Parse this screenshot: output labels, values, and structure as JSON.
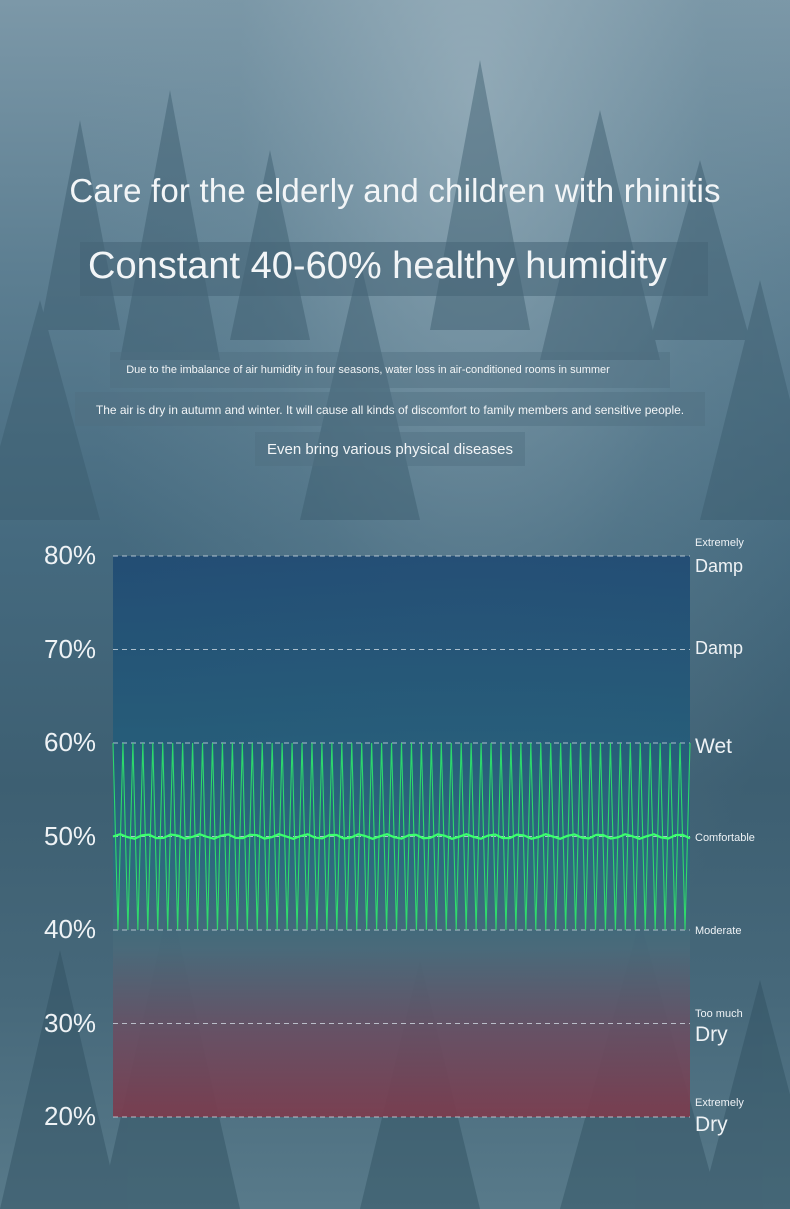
{
  "header": {
    "title": "Care for the elderly and children with rhinitis",
    "subtitle": "Constant 40-60% healthy humidity"
  },
  "description": {
    "line1": "Due to the imbalance of air humidity in four seasons, water loss in air-conditioned rooms in summer",
    "line2": "The air is dry in autumn and winter. It will cause all kinds of discomfort to family members and sensitive people.",
    "line3": "Even bring various physical diseases"
  },
  "zones": [
    {
      "small": "Extremely",
      "big": "Damp"
    },
    {
      "small": "",
      "big": "Damp"
    },
    {
      "small": "",
      "big": "Wet"
    },
    {
      "small": "Comfortable",
      "big": ""
    },
    {
      "small": "Moderate",
      "big": ""
    },
    {
      "small": "Too much",
      "big": "Dry"
    },
    {
      "small": "Extremely",
      "big": "Dry"
    }
  ],
  "chart_data": {
    "type": "line",
    "title": "",
    "xlabel": "",
    "ylabel": "",
    "ylim": [
      20,
      80
    ],
    "y_ticks": [
      "80%",
      "70%",
      "60%",
      "50%",
      "40%",
      "30%",
      "20%"
    ],
    "y_tick_values": [
      80,
      70,
      60,
      50,
      40,
      30,
      20
    ],
    "grid": "dashed horizontal lines at each tick",
    "series": [
      {
        "color": "#2ee66a",
        "pattern": "oscillation between 40 and 60",
        "min": 40,
        "max": 60,
        "cycles": 58
      },
      {
        "color": "#3cff6e",
        "pattern": "steady level",
        "value": 50
      }
    ],
    "band_colors": {
      "top": "#1e4a72",
      "middle": "#2d6680",
      "bottom": "#7a3a4a"
    }
  }
}
